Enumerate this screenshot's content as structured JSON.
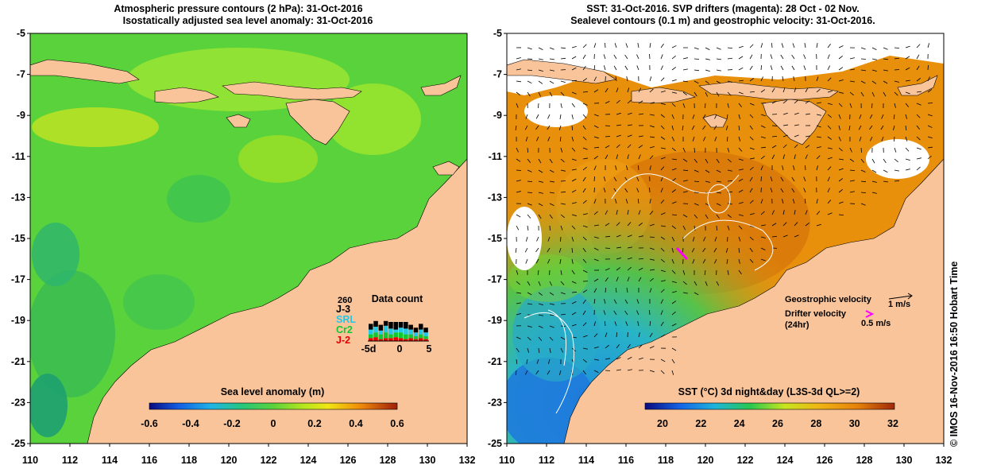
{
  "left_panel": {
    "title_line1": "Atmospheric pressure contours (2 hPa): 31-Oct-2016",
    "title_line2": "Isostatically adjusted sea level anomaly: 31-Oct-2016",
    "x_ticks": [
      "110",
      "112",
      "114",
      "116",
      "118",
      "120",
      "122",
      "124",
      "126",
      "128",
      "130",
      "132"
    ],
    "y_ticks": [
      "-5",
      "-7",
      "-9",
      "-11",
      "-13",
      "-15",
      "-17",
      "-19",
      "-21",
      "-23",
      "-25"
    ],
    "colorbar_title": "Sea level anomaly (m)",
    "colorbar_ticks": [
      "-0.6",
      "-0.4",
      "-0.2",
      "0",
      "0.2",
      "0.4",
      "0.6"
    ],
    "data_count": {
      "title": "Data count",
      "max_label": "260",
      "missions": [
        {
          "label": "J-3",
          "color": "#000000"
        },
        {
          "label": "SRL",
          "color": "#22c8e6"
        },
        {
          "label": "Cr2",
          "color": "#12c832"
        },
        {
          "label": "J-2",
          "color": "#e60000"
        }
      ],
      "x_ticks": [
        "-5d",
        "0",
        "5"
      ]
    }
  },
  "right_panel": {
    "title_line1": "SST: 31-Oct-2016. SVP drifters (magenta): 28 Oct - 02 Nov.",
    "title_line2": "Sealevel contours (0.1 m) and geostrophic velocity: 31-Oct-2016.",
    "x_ticks": [
      "110",
      "112",
      "114",
      "116",
      "118",
      "120",
      "122",
      "124",
      "126",
      "128",
      "130",
      "132"
    ],
    "y_ticks": [
      "-5",
      "-7",
      "-9",
      "-11",
      "-13",
      "-15",
      "-17",
      "-19",
      "-21",
      "-23",
      "-25"
    ],
    "colorbar_title": "SST (°C) 3d night&day (L3S-3d QL>=2)",
    "colorbar_ticks": [
      "20",
      "22",
      "24",
      "26",
      "28",
      "30",
      "32"
    ],
    "legend": {
      "geo_label": "Geostrophic velocity",
      "geo_value": "1 m/s",
      "drifter_label": "Drifter velocity",
      "drifter_sub": "(24hr)",
      "drifter_value": "0.5 m/s"
    }
  },
  "credit": "© IMOS 16-Nov-2016 16:50 Hobart Time",
  "colors": {
    "land": "#f9c49a",
    "sla_ocean": "#58d23c",
    "sst_ocean": "#e8900c",
    "drifter": "#ff00ff"
  }
}
